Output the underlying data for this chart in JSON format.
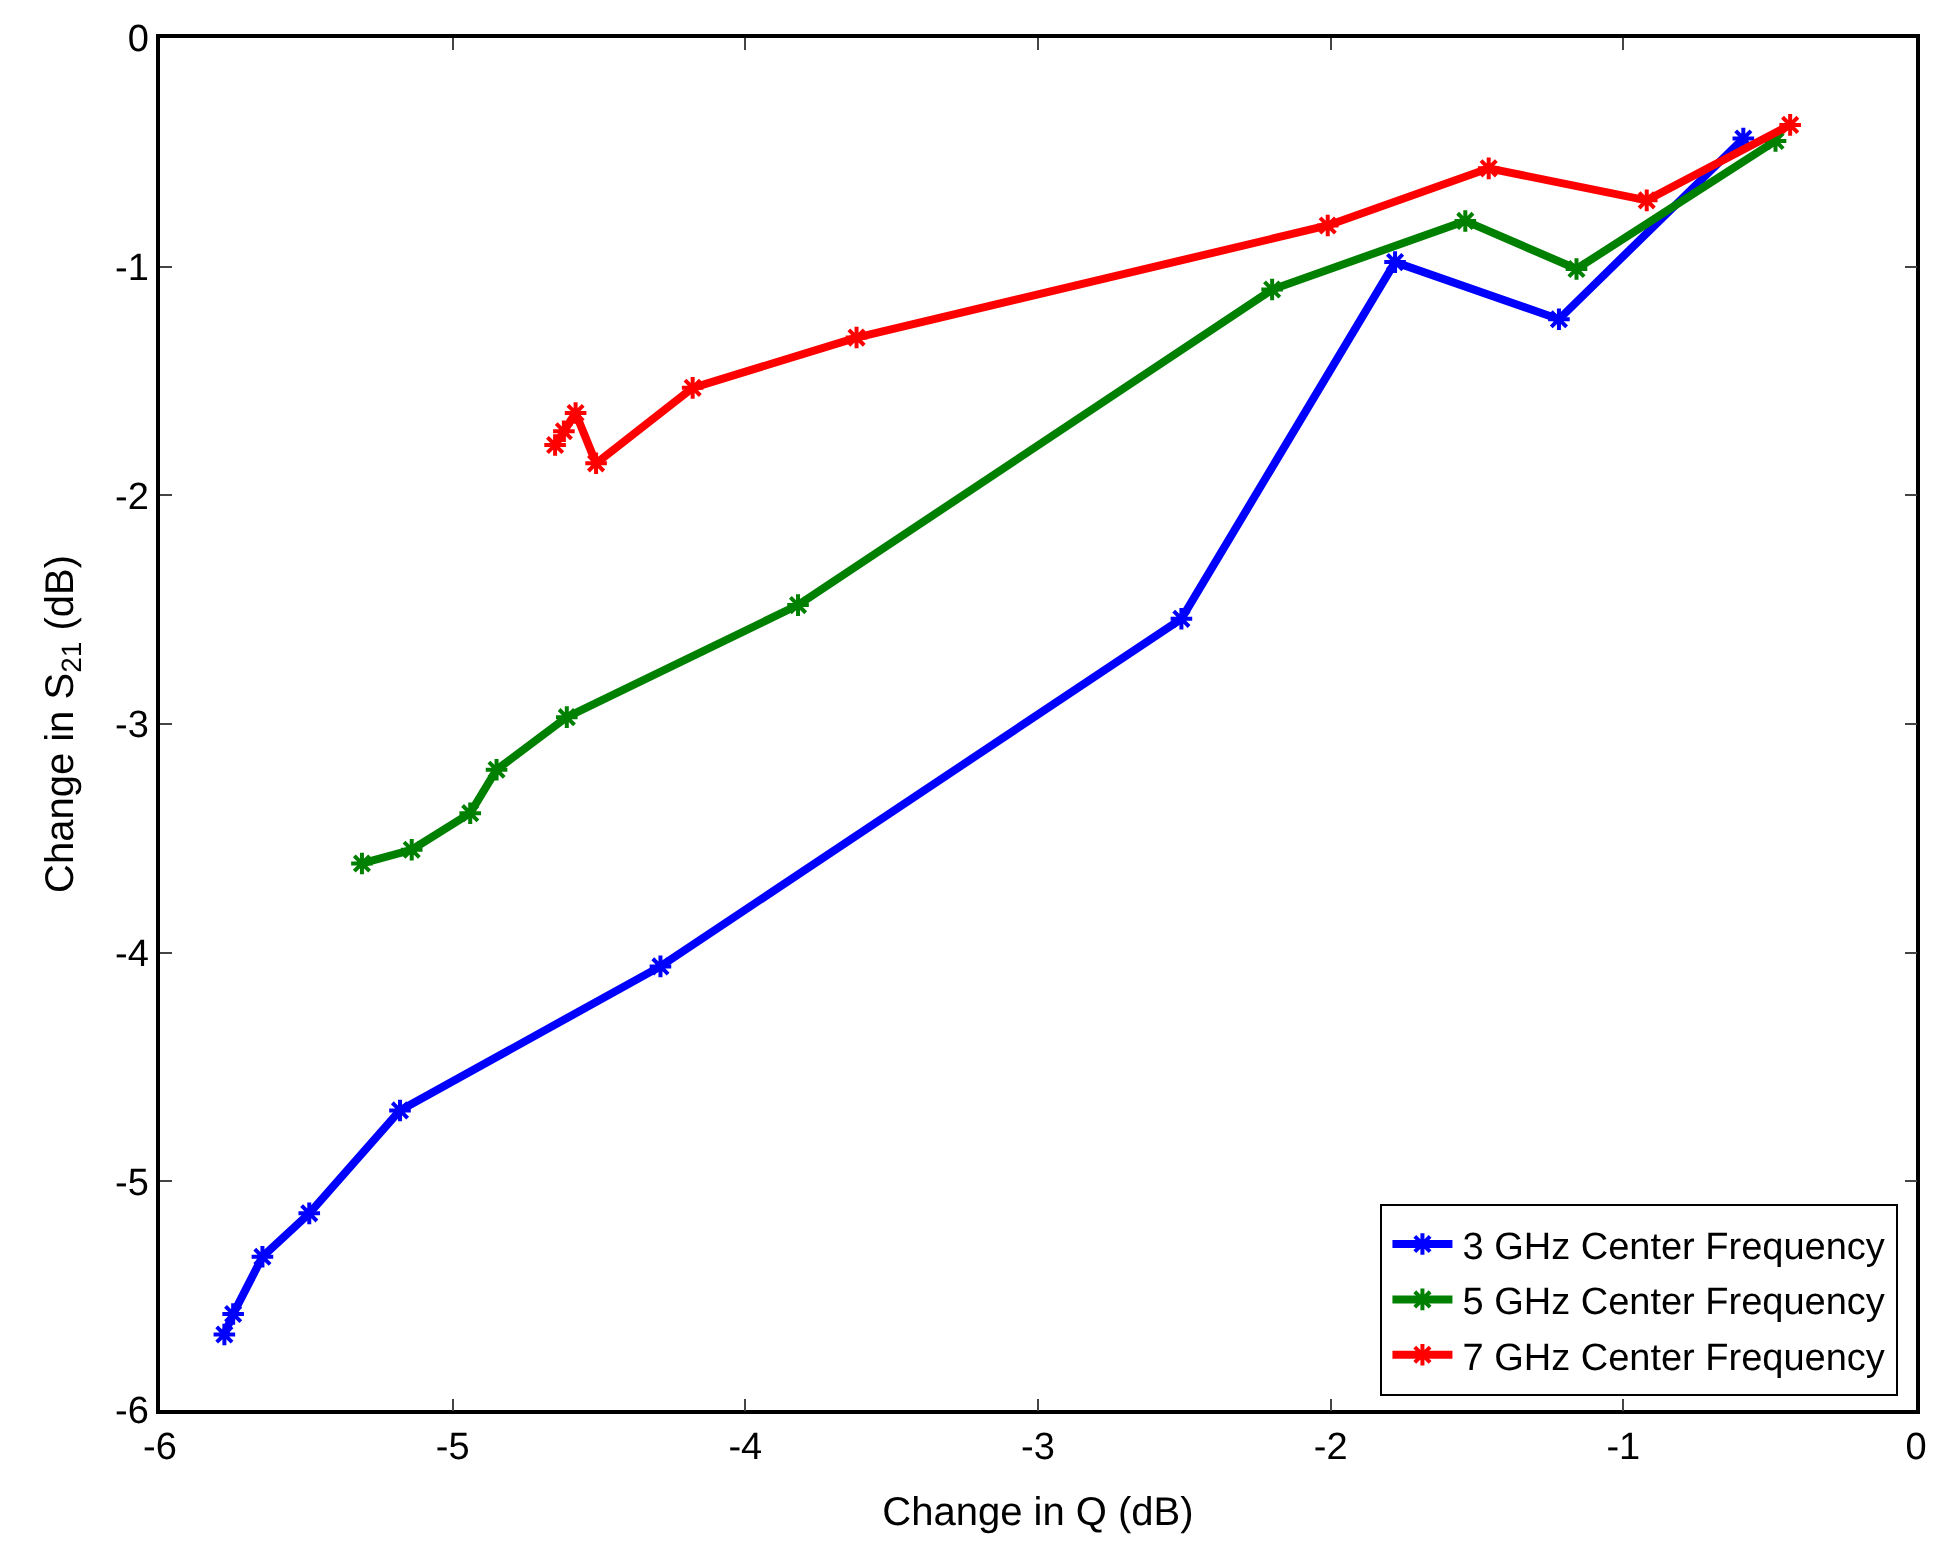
{
  "chart_data": {
    "type": "line",
    "xlabel": "Change in Q (dB)",
    "ylabel": "Change in S$_{21}$ (dB)",
    "xlim": [
      -6,
      0
    ],
    "xticks": [
      -6,
      -5,
      -4,
      -3,
      -2,
      -1,
      0
    ],
    "ylim": [
      -6,
      0
    ],
    "yticks": [
      -6,
      -5,
      -4,
      -3,
      -2,
      -1,
      0
    ],
    "grid": false,
    "legend": "bottom right",
    "marker": "cross",
    "line_style": "solid",
    "series": [
      {
        "name": "3 GHz Center Frequency",
        "color": "#0000ff",
        "x": [
          -5.78,
          -5.75,
          -5.65,
          -5.49,
          -5.18,
          -4.29,
          -2.51,
          -1.78,
          -1.22,
          -0.59
        ],
        "values": [
          -5.67,
          -5.58,
          -5.33,
          -5.14,
          -4.69,
          -4.06,
          -2.54,
          -0.98,
          -1.23,
          -0.44
        ]
      },
      {
        "name": "5 GHz Center Frequency",
        "color": "#008000",
        "x": [
          -5.31,
          -5.14,
          -4.94,
          -4.85,
          -4.61,
          -3.82,
          -2.2,
          -1.54,
          -1.16,
          -0.48
        ],
        "values": [
          -3.61,
          -3.55,
          -3.39,
          -3.2,
          -2.97,
          -2.48,
          -1.1,
          -0.8,
          -1.01,
          -0.45
        ]
      },
      {
        "name": "7 GHz Center Frequency",
        "color": "#ff0000",
        "x": [
          -4.65,
          -4.62,
          -4.58,
          -4.51,
          -4.18,
          -3.62,
          -2.01,
          -1.46,
          -0.92,
          -0.43
        ],
        "values": [
          -1.78,
          -1.72,
          -1.64,
          -1.86,
          -1.53,
          -1.31,
          -0.82,
          -0.57,
          -0.71,
          -0.38
        ]
      }
    ]
  }
}
